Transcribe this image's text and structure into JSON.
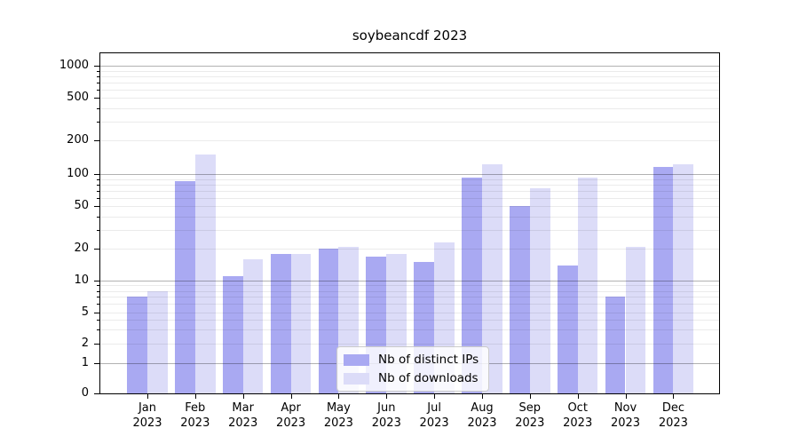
{
  "chart_data": {
    "type": "bar",
    "title": "soybeancdf 2023",
    "categories": [
      "Jan",
      "Feb",
      "Mar",
      "Apr",
      "May",
      "Jun",
      "Jul",
      "Aug",
      "Sep",
      "Oct",
      "Nov",
      "Dec"
    ],
    "category_year": "2023",
    "series": [
      {
        "name": "Nb of distinct IPs",
        "color": "#a9a9f2",
        "values": [
          7,
          85,
          11,
          18,
          20,
          17,
          15,
          93,
          50,
          14,
          7,
          116
        ]
      },
      {
        "name": "Nb of downloads",
        "color": "#dcdcf8",
        "values": [
          8,
          150,
          16,
          18,
          21,
          18,
          23,
          122,
          73,
          93,
          21,
          122
        ]
      }
    ],
    "y_axis": {
      "scale": "symlog",
      "ticks": [
        0,
        1,
        2,
        5,
        10,
        20,
        50,
        100,
        200,
        500,
        1000
      ],
      "range": [
        0,
        1300
      ]
    },
    "grid": true,
    "legend_position": "lower center"
  }
}
